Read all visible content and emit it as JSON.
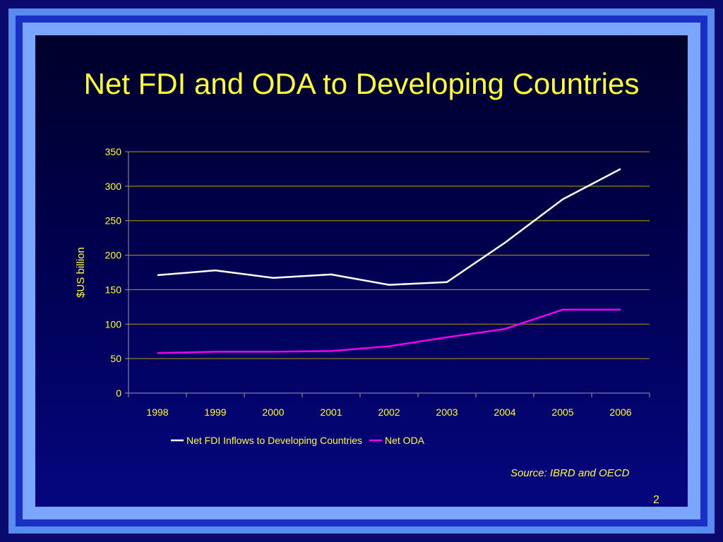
{
  "slide": {
    "title": "Net FDI and ODA to Developing Countries",
    "source": "Source: IBRD and OECD",
    "page_number": "2"
  },
  "colors": {
    "title_text": "#ffff33",
    "gridline": "#b8a000",
    "fdi_line": "#ffffff",
    "oda_line": "#ee00ee"
  },
  "chart_data": {
    "type": "line",
    "categories": [
      "1998",
      "1999",
      "2000",
      "2001",
      "2002",
      "2003",
      "2004",
      "2005",
      "2006"
    ],
    "series": [
      {
        "name": "Net FDI Inflows to Developing Countries",
        "color": "#ffffff",
        "values": [
          171,
          178,
          167,
          172,
          157,
          161,
          218,
          281,
          325
        ]
      },
      {
        "name": "Net ODA",
        "color": "#ee00ee",
        "values": [
          58,
          60,
          60,
          61,
          68,
          81,
          93,
          121,
          121
        ]
      }
    ],
    "ylabel": "$US billion",
    "ylim": [
      0,
      350
    ],
    "yticks": [
      "0",
      "50",
      "100",
      "150",
      "200",
      "250",
      "300",
      "350"
    ],
    "grid": true,
    "legend_position": "bottom"
  }
}
